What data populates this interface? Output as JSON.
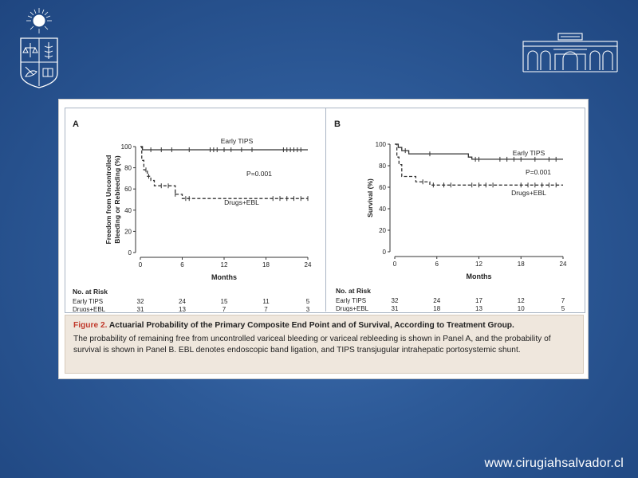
{
  "website": "www.cirugiahsalvador.cl",
  "caption": {
    "label": "Figure 2.",
    "title": "Actuarial Probability of the Primary Composite End Point and of Survival, According to Treatment Group.",
    "body": "The probability of remaining free from uncontrolled variceal bleeding or variceal rebleeding is shown in Panel A, and the probability of survival is shown in Panel B. EBL denotes endoscopic band ligation, and TIPS transjugular intrahepatic portosystemic shunt."
  },
  "colors": {
    "background": "#2d5a98",
    "caption_bg": "#efe7dd",
    "figure_label": "#c0392b",
    "line": "#333333"
  },
  "chart_data": [
    {
      "panel": "A",
      "type": "line",
      "xlabel": "Months",
      "ylabel": "Freedom from Uncontrolled Bleeding or Rebleeding (%)",
      "ylabel_lines": [
        "Freedom from Uncontrolled",
        "Bleeding or Rebleeding (%)"
      ],
      "xlim": [
        0,
        24
      ],
      "ylim": [
        0,
        100
      ],
      "xticks": [
        0,
        6,
        12,
        18,
        24
      ],
      "yticks": [
        0,
        20,
        40,
        60,
        80,
        100
      ],
      "pvalue": "P=0.001",
      "series": [
        {
          "name": "Early TIPS",
          "style": "solid",
          "steps": [
            [
              0,
              100
            ],
            [
              0.3,
              97
            ],
            [
              24,
              97
            ]
          ],
          "censored": [
            1.5,
            3,
            4.5,
            7,
            10,
            10.5,
            11,
            12,
            13,
            14.5,
            16,
            20.5,
            21,
            21.5,
            22,
            22.5,
            23
          ]
        },
        {
          "name": "Drugs+EBL",
          "style": "dashed",
          "steps": [
            [
              0,
              100
            ],
            [
              0.2,
              87
            ],
            [
              0.5,
              78
            ],
            [
              1,
              72
            ],
            [
              1.5,
              68
            ],
            [
              2,
              63
            ],
            [
              5,
              55
            ],
            [
              6,
              51
            ],
            [
              24,
              51
            ]
          ],
          "censored": [
            0.8,
            1.2,
            3,
            4,
            5,
            6.5,
            7,
            19,
            20,
            21,
            22,
            23,
            24
          ]
        }
      ],
      "risk_table": {
        "header": "No. at Risk",
        "times": [
          0,
          6,
          12,
          18,
          24
        ],
        "rows": [
          {
            "label": "Early TIPS",
            "values": [
              "32",
              "24",
              "15",
              "11",
              "5"
            ]
          },
          {
            "label": "Drugs+EBL",
            "values": [
              "31",
              "13",
              "7",
              "7",
              "3"
            ]
          }
        ]
      }
    },
    {
      "panel": "B",
      "type": "line",
      "xlabel": "Months",
      "ylabel": "Survival (%)",
      "ylabel_lines": [
        "Survival (%)"
      ],
      "xlim": [
        0,
        24
      ],
      "ylim": [
        0,
        100
      ],
      "xticks": [
        0,
        6,
        12,
        18,
        24
      ],
      "yticks": [
        0,
        20,
        40,
        60,
        80,
        100
      ],
      "pvalue": "P=0.001",
      "series": [
        {
          "name": "Early TIPS",
          "style": "solid",
          "steps": [
            [
              0,
              100
            ],
            [
              0.5,
              97
            ],
            [
              1,
              94
            ],
            [
              2,
              91
            ],
            [
              10.5,
              88
            ],
            [
              11,
              86
            ],
            [
              24,
              86
            ]
          ],
          "censored": [
            1.5,
            5,
            11.5,
            12,
            15,
            16,
            17,
            18,
            20,
            22,
            23
          ]
        },
        {
          "name": "Drugs+EBL",
          "style": "dashed",
          "steps": [
            [
              0,
              100
            ],
            [
              0.3,
              88
            ],
            [
              0.6,
              81
            ],
            [
              1,
              70
            ],
            [
              3,
              65
            ],
            [
              5,
              62
            ],
            [
              24,
              62
            ]
          ],
          "censored": [
            4,
            5.5,
            7,
            8,
            11,
            12,
            13,
            14,
            18,
            19,
            20,
            21,
            22,
            23
          ]
        }
      ],
      "risk_table": {
        "header": "No. at Risk",
        "times": [
          0,
          6,
          12,
          18,
          24
        ],
        "rows": [
          {
            "label": "Early TIPS",
            "values": [
              "32",
              "24",
              "17",
              "12",
              "7"
            ]
          },
          {
            "label": "Drugs+EBL",
            "values": [
              "31",
              "18",
              "13",
              "10",
              "5"
            ]
          }
        ]
      }
    }
  ]
}
